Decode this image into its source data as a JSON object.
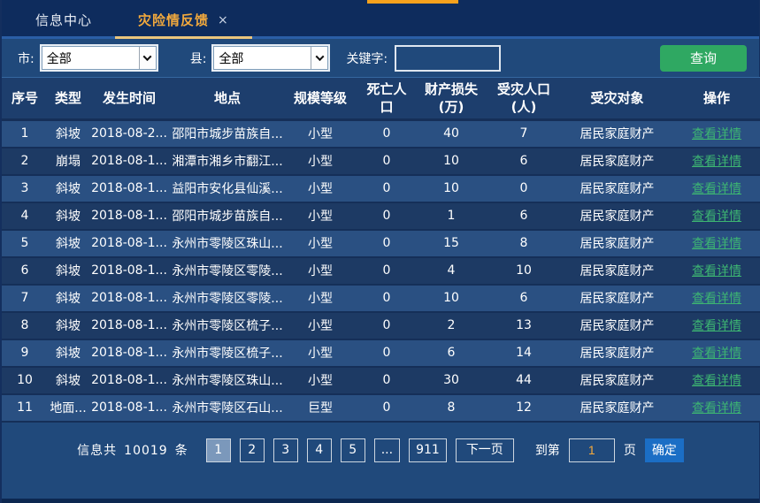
{
  "tabs": [
    {
      "label": "信息中心",
      "active": false
    },
    {
      "label": "灾险情反馈",
      "active": true,
      "close_icon": "×"
    }
  ],
  "filters": {
    "city_label": "市:",
    "city_value": "全部",
    "county_label": "县:",
    "county_value": "全部",
    "keyword_label": "关键字:",
    "keyword_value": "",
    "search_button": "查询"
  },
  "table": {
    "headers": [
      "序号",
      "类型",
      "发生时间",
      "地点",
      "规模等级",
      "死亡人\n口",
      "财产损失\n(万)",
      "受灾人口\n(人)",
      "受灾对象",
      "操作"
    ],
    "action_label": "查看详情",
    "rows": [
      [
        "1",
        "斜坡",
        "2018-08-2...",
        "邵阳市城步苗族自...",
        "小型",
        "0",
        "40",
        "7",
        "居民家庭财产"
      ],
      [
        "2",
        "崩塌",
        "2018-08-1...",
        "湘潭市湘乡市翻江...",
        "小型",
        "0",
        "10",
        "6",
        "居民家庭财产"
      ],
      [
        "3",
        "斜坡",
        "2018-08-1...",
        "益阳市安化县仙溪...",
        "小型",
        "0",
        "10",
        "0",
        "居民家庭财产"
      ],
      [
        "4",
        "斜坡",
        "2018-08-1...",
        "邵阳市城步苗族自...",
        "小型",
        "0",
        "1",
        "6",
        "居民家庭财产"
      ],
      [
        "5",
        "斜坡",
        "2018-08-1...",
        "永州市零陵区珠山...",
        "小型",
        "0",
        "15",
        "8",
        "居民家庭财产"
      ],
      [
        "6",
        "斜坡",
        "2018-08-1...",
        "永州市零陵区零陵...",
        "小型",
        "0",
        "4",
        "10",
        "居民家庭财产"
      ],
      [
        "7",
        "斜坡",
        "2018-08-1...",
        "永州市零陵区零陵...",
        "小型",
        "0",
        "10",
        "6",
        "居民家庭财产"
      ],
      [
        "8",
        "斜坡",
        "2018-08-1...",
        "永州市零陵区梳子...",
        "小型",
        "0",
        "2",
        "13",
        "居民家庭财产"
      ],
      [
        "9",
        "斜坡",
        "2018-08-1...",
        "永州市零陵区梳子...",
        "小型",
        "0",
        "6",
        "14",
        "居民家庭财产"
      ],
      [
        "10",
        "斜坡",
        "2018-08-1...",
        "永州市零陵区珠山...",
        "小型",
        "0",
        "30",
        "44",
        "居民家庭财产"
      ],
      [
        "11",
        "地面...",
        "2018-08-1...",
        "永州市零陵区石山...",
        "巨型",
        "0",
        "8",
        "12",
        "居民家庭财产"
      ]
    ]
  },
  "pagination": {
    "total_prefix": "信息共",
    "total_count": "10019",
    "total_suffix": "条",
    "pages": [
      "1",
      "2",
      "3",
      "4",
      "5",
      "...",
      "911"
    ],
    "active_page": "1",
    "next_label": "下一页",
    "goto_label": "到第",
    "goto_value": "1",
    "page_suffix": "页",
    "confirm_label": "确定"
  },
  "icons": {
    "close": "close-icon",
    "chevron_down": "chevron-down-icon"
  },
  "colors": {
    "bg_main": "#20497b",
    "bg_tabbar": "#0e2c5d",
    "accent_orange": "#f6a21d",
    "tab_underline": "#eac57d",
    "tab_active_text": "#f2a93d",
    "divider_blue": "#2a5ea6",
    "header_bg": "#1d3e6d",
    "row_odd": "#2a5082",
    "row_even": "#1d3a64",
    "row_gap": "#152f58",
    "link_green": "#3db572",
    "btn_green": "#2fa862",
    "btn_blue": "#1b6ec5",
    "page_active": "#7b98bb",
    "border_light": "#cdd6e0",
    "goto_text": "#f5a93b",
    "bottom_strip": "#0c2750"
  }
}
